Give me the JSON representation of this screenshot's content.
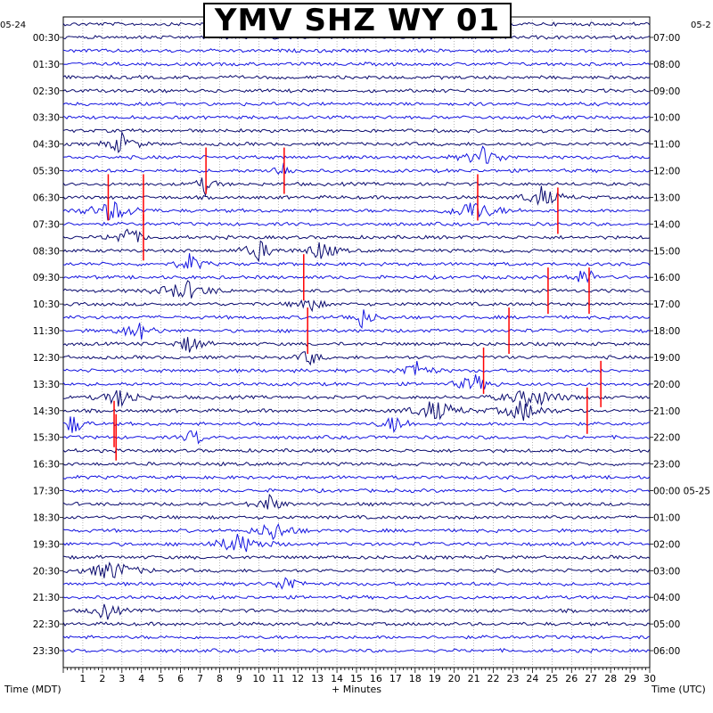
{
  "chart_data": {
    "type": "helicorder",
    "title": "YMV SHZ WY 01",
    "xlabel": "+ Minutes",
    "left_axis_label": "Time (MDT)",
    "right_axis_label": "Time (UTC)",
    "left_date": "05-24",
    "right_date": "05-2",
    "x_ticks": [
      "1",
      "2",
      "3",
      "4",
      "5",
      "6",
      "7",
      "8",
      "9",
      "10",
      "11",
      "12",
      "13",
      "14",
      "15",
      "16",
      "17",
      "18",
      "19",
      "20",
      "21",
      "22",
      "23",
      "24",
      "25",
      "26",
      "27",
      "28",
      "29",
      "30"
    ],
    "xlim": [
      0,
      30
    ],
    "left_times": [
      "00:30",
      "01:30",
      "02:30",
      "03:30",
      "04:30",
      "05:30",
      "06:30",
      "07:30",
      "08:30",
      "09:30",
      "10:30",
      "11:30",
      "12:30",
      "13:30",
      "14:30",
      "15:30",
      "16:30",
      "17:30",
      "18:30",
      "19:30",
      "20:30",
      "21:30",
      "22:30",
      "23:30"
    ],
    "right_times": [
      "07:00",
      "08:00",
      "09:00",
      "10:00",
      "11:00",
      "12:00",
      "13:00",
      "14:00",
      "15:00",
      "16:00",
      "17:00",
      "18:00",
      "19:00",
      "20:00",
      "21:00",
      "22:00",
      "23:00",
      "00:00 05-25",
      "01:00",
      "02:00",
      "03:00",
      "04:00",
      "05:00",
      "06:00"
    ],
    "trace_colors": [
      "#0a0a6e",
      "#1414e0"
    ],
    "clip_color": "#ff0000",
    "grid": true
  }
}
